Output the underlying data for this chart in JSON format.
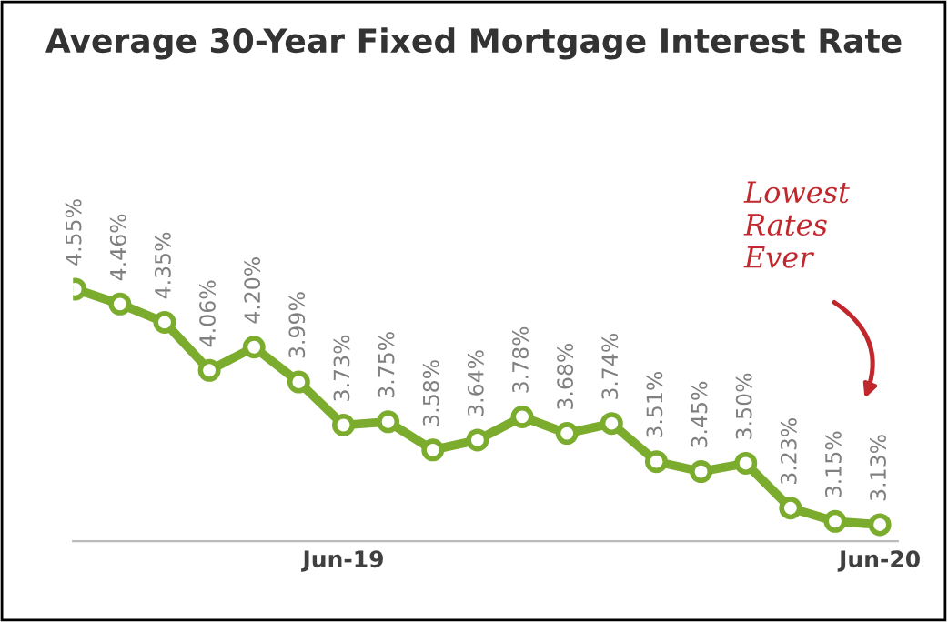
{
  "chart_data": {
    "type": "line",
    "title": "Average 30-Year Fixed Mortgage Interest Rate",
    "categories": [
      null,
      null,
      null,
      null,
      null,
      null,
      "Jun-19",
      null,
      null,
      null,
      null,
      null,
      null,
      null,
      null,
      null,
      null,
      null,
      "Jun-20"
    ],
    "series": [
      {
        "color": "#7bac2e",
        "values": [
          4.55,
          4.46,
          4.35,
          4.06,
          4.2,
          3.99,
          3.73,
          3.75,
          3.58,
          3.64,
          3.78,
          3.68,
          3.74,
          3.51,
          3.45,
          3.5,
          3.23,
          3.15,
          3.13
        ],
        "value_labels": [
          "4.55%",
          "4.46%",
          "4.35%",
          "4.06%",
          "4.20%",
          "3.99%",
          "3.73%",
          "3.75%",
          "3.58%",
          "3.64%",
          "3.78%",
          "3.68%",
          "3.74%",
          "3.51%",
          "3.45%",
          "3.50%",
          "3.23%",
          "3.15%",
          "3.13%"
        ]
      }
    ],
    "marker": "circle",
    "line_style": "solid",
    "grid": false,
    "legend": false,
    "tick_labels": "x",
    "annotations": [
      "Lowest\nRates\nEver"
    ]
  }
}
